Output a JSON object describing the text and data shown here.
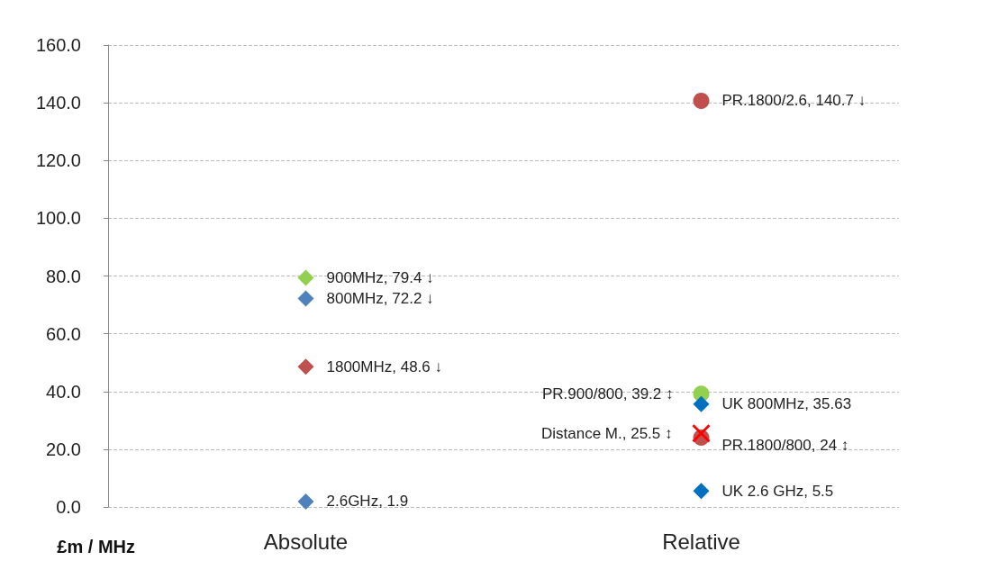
{
  "chart_data": {
    "type": "scatter",
    "ylabel": "£m / MHz",
    "categories": [
      "Absolute",
      "Relative"
    ],
    "ylim": [
      0,
      160
    ],
    "yticks": [
      {
        "value": 0,
        "label": "0.0"
      },
      {
        "value": 20,
        "label": "20.0"
      },
      {
        "value": 40,
        "label": "40.0"
      },
      {
        "value": 60,
        "label": "60.0"
      },
      {
        "value": 80,
        "label": "80.0"
      },
      {
        "value": 100,
        "label": "100.0"
      },
      {
        "value": 120,
        "label": "120.0"
      },
      {
        "value": 140,
        "label": "140.0"
      },
      {
        "value": 160,
        "label": "160.0"
      }
    ],
    "grid": "y",
    "series": [
      {
        "x": [
          "Absolute"
        ],
        "values": [
          79.4
        ],
        "color": "#92d050",
        "marker": "diamond",
        "value_labels": [
          "900MHz, 79.4 ↓"
        ]
      },
      {
        "x": [
          "Absolute"
        ],
        "values": [
          72.2
        ],
        "color": "#4f81bd",
        "marker": "diamond",
        "value_labels": [
          "800MHz, 72.2 ↓"
        ]
      },
      {
        "x": [
          "Absolute"
        ],
        "values": [
          48.6
        ],
        "color": "#c0504d",
        "marker": "diamond",
        "value_labels": [
          "1800MHz, 48.6 ↓"
        ]
      },
      {
        "x": [
          "Absolute"
        ],
        "values": [
          1.9
        ],
        "color": "#4f81bd",
        "marker": "diamond",
        "value_labels": [
          "2.6GHz, 1.9"
        ]
      },
      {
        "x": [
          "Relative"
        ],
        "values": [
          140.7
        ],
        "color": "#c0504d",
        "marker": "circle",
        "value_labels": [
          "PR.1800/2.6, 140.7 ↓"
        ]
      },
      {
        "x": [
          "Relative"
        ],
        "values": [
          39.2
        ],
        "color": "#92d050",
        "marker": "circle",
        "value_labels": [
          "PR.900/800, 39.2 ↕"
        ]
      },
      {
        "x": [
          "Relative"
        ],
        "values": [
          35.63
        ],
        "color": "#0070c0",
        "marker": "diamond",
        "value_labels": [
          "UK 800MHz, 35.63"
        ]
      },
      {
        "x": [
          "Relative"
        ],
        "values": [
          24
        ],
        "color": "#c0504d",
        "marker": "circle",
        "value_labels": [
          "PR.1800/800, 24 ↕"
        ]
      },
      {
        "x": [
          "Relative"
        ],
        "values": [
          25.5
        ],
        "color": "#ff0000",
        "marker": "cross",
        "value_labels": [
          "Distance M., 25.5 ↕"
        ]
      },
      {
        "x": [
          "Relative"
        ],
        "values": [
          5.5
        ],
        "color": "#0070c0",
        "marker": "diamond",
        "value_labels": [
          "UK 2.6 GHz, 5.5"
        ]
      }
    ]
  }
}
